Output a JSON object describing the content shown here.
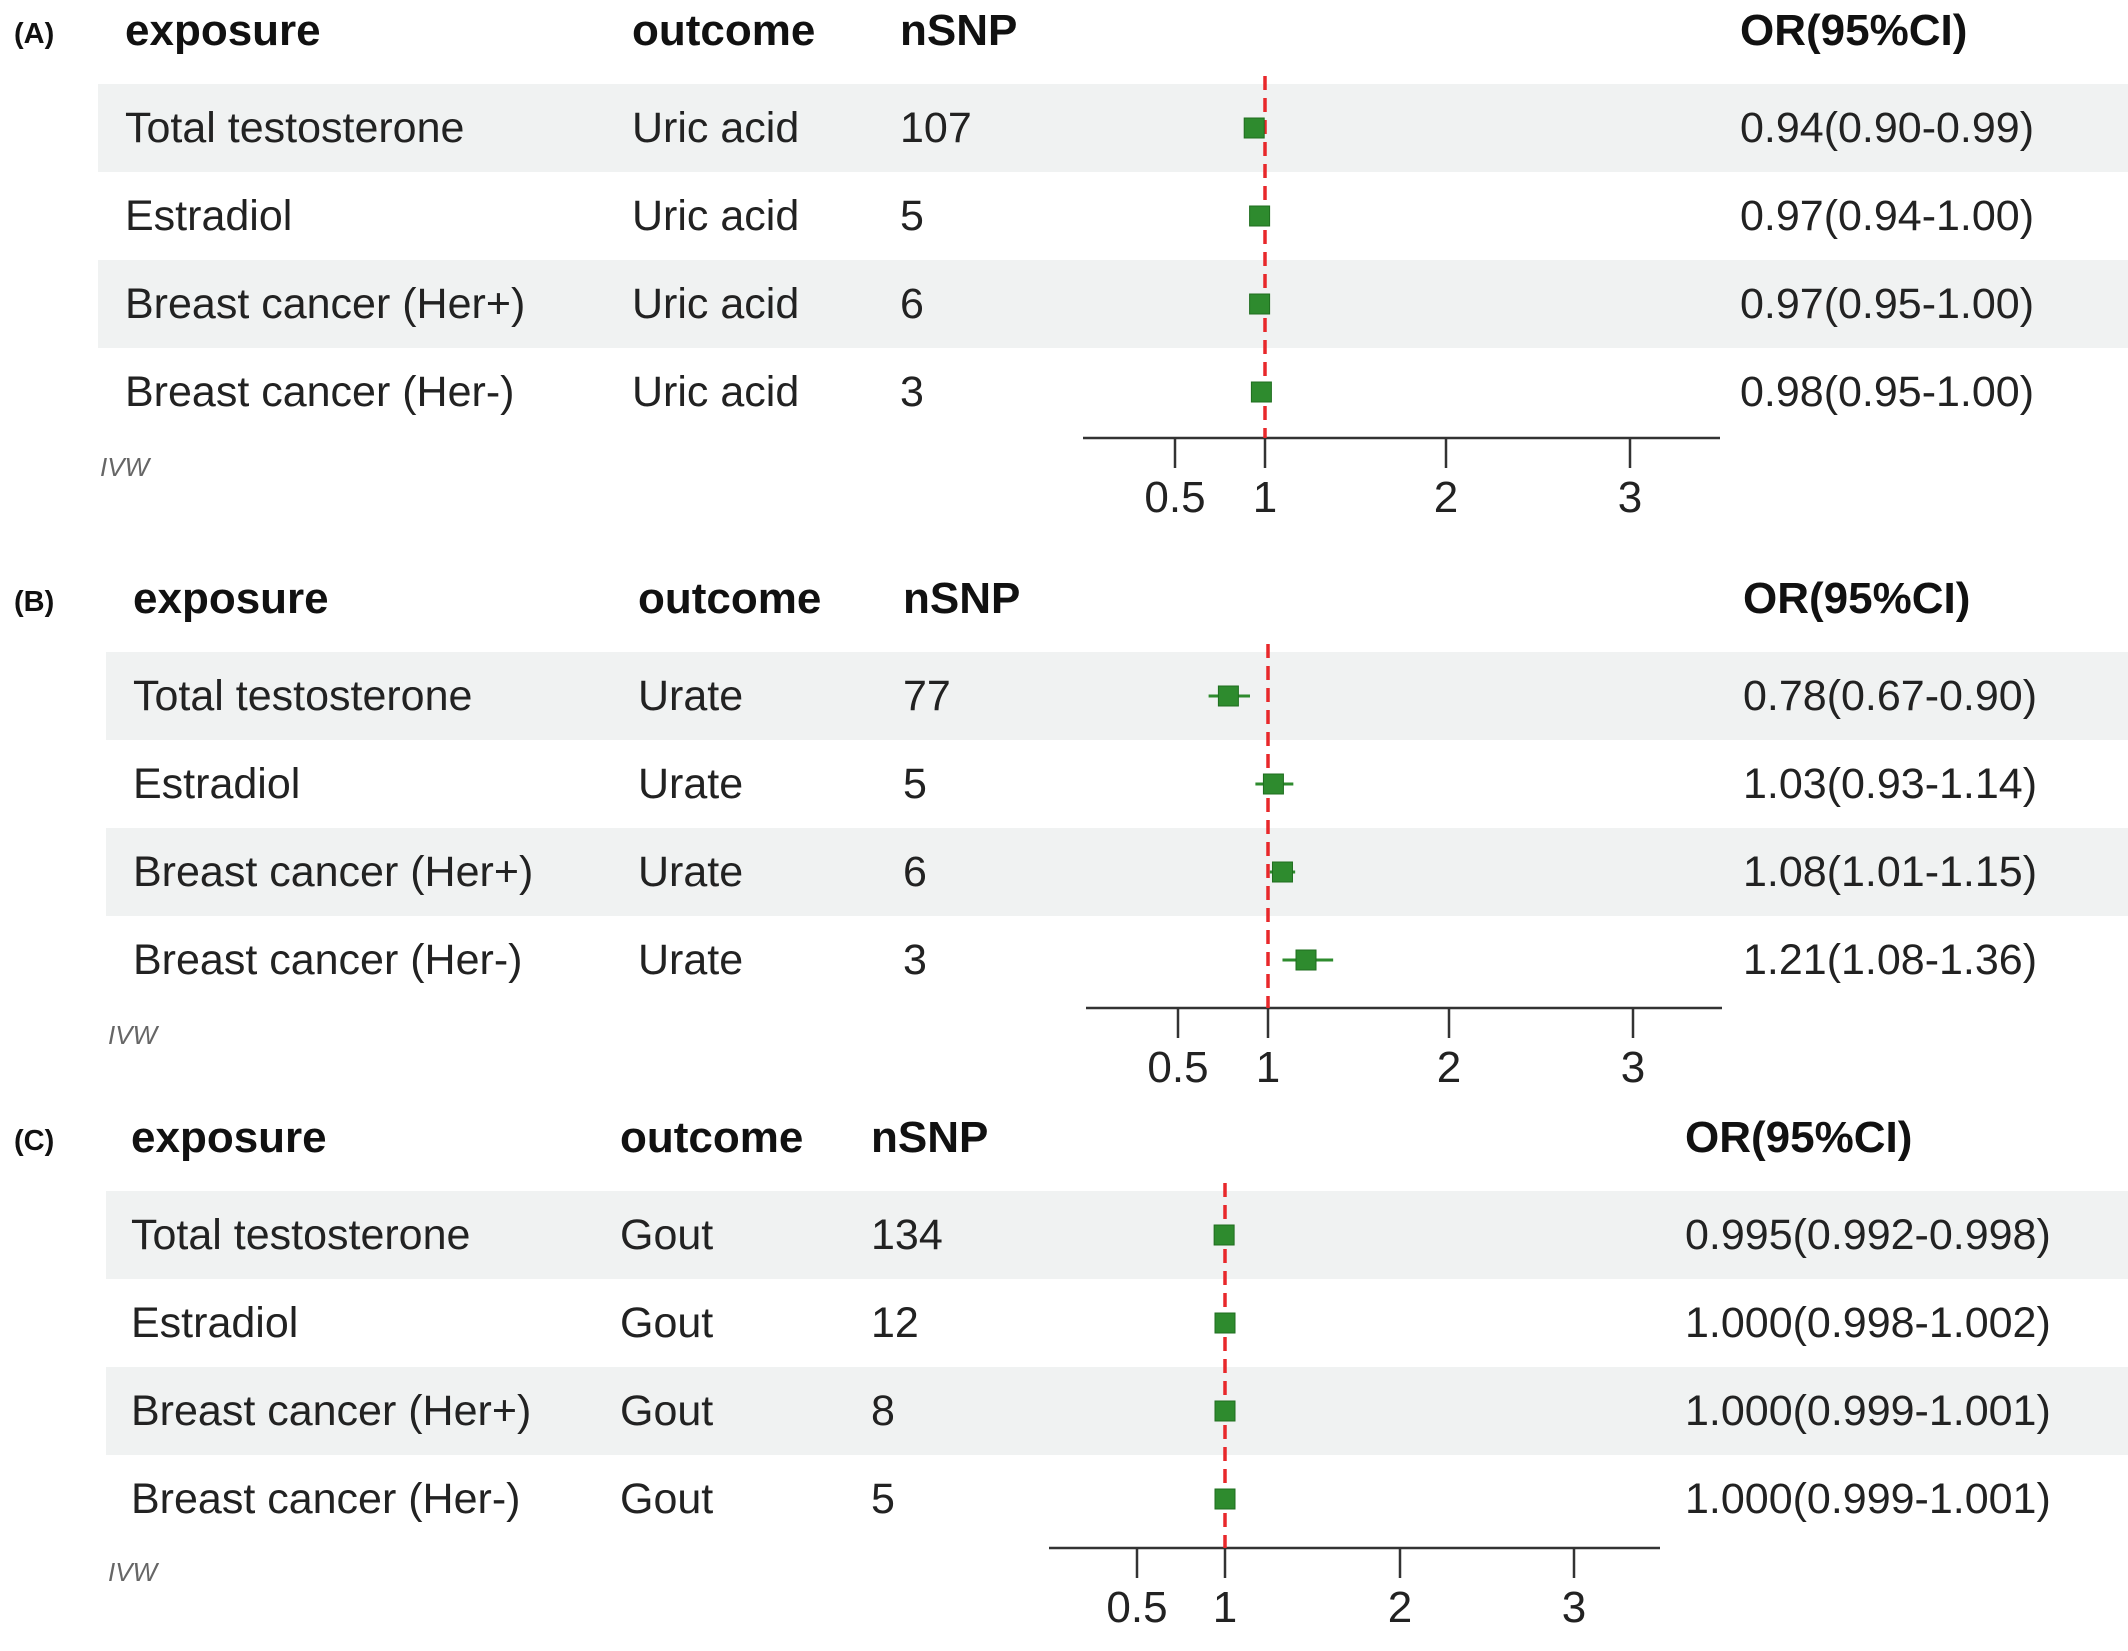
{
  "chart_data": [
    {
      "type": "forest",
      "panel_label": "(A)",
      "headers": {
        "exposure": "exposure",
        "outcome": "outcome",
        "nsnp": "nSNP",
        "or": "OR(95%CI)"
      },
      "method": "IVW",
      "xticks": [
        0.5,
        1,
        2,
        3
      ],
      "xtick_labels": [
        "0.5",
        "1",
        "2",
        "3"
      ],
      "reference_line": 1,
      "rows": [
        {
          "exposure": "Total testosterone",
          "outcome": "Uric acid",
          "nsnp": "107",
          "or": 0.94,
          "lo": 0.9,
          "hi": 0.99,
          "text": "0.94(0.90-0.99)"
        },
        {
          "exposure": "Estradiol",
          "outcome": "Uric acid",
          "nsnp": "5",
          "or": 0.97,
          "lo": 0.94,
          "hi": 1.0,
          "text": "0.97(0.94-1.00)"
        },
        {
          "exposure": "Breast cancer (Her+)",
          "outcome": "Uric acid",
          "nsnp": "6",
          "or": 0.97,
          "lo": 0.95,
          "hi": 1.0,
          "text": "0.97(0.95-1.00)"
        },
        {
          "exposure": "Breast cancer (Her-)",
          "outcome": "Uric acid",
          "nsnp": "3",
          "or": 0.98,
          "lo": 0.95,
          "hi": 1.0,
          "text": "0.98(0.95-1.00)"
        }
      ]
    },
    {
      "type": "forest",
      "panel_label": "(B)",
      "headers": {
        "exposure": "exposure",
        "outcome": "outcome",
        "nsnp": "nSNP",
        "or": "OR(95%CI)"
      },
      "method": "IVW",
      "xticks": [
        0.5,
        1,
        2,
        3
      ],
      "xtick_labels": [
        "0.5",
        "1",
        "2",
        "3"
      ],
      "reference_line": 1,
      "rows": [
        {
          "exposure": "Total testosterone",
          "outcome": "Urate",
          "nsnp": "77",
          "or": 0.78,
          "lo": 0.67,
          "hi": 0.9,
          "text": "0.78(0.67-0.90)"
        },
        {
          "exposure": "Estradiol",
          "outcome": "Urate",
          "nsnp": "5",
          "or": 1.03,
          "lo": 0.93,
          "hi": 1.14,
          "text": "1.03(0.93-1.14)"
        },
        {
          "exposure": "Breast cancer (Her+)",
          "outcome": "Urate",
          "nsnp": "6",
          "or": 1.08,
          "lo": 1.01,
          "hi": 1.15,
          "text": "1.08(1.01-1.15)"
        },
        {
          "exposure": "Breast cancer (Her-)",
          "outcome": "Urate",
          "nsnp": "3",
          "or": 1.21,
          "lo": 1.08,
          "hi": 1.36,
          "text": "1.21(1.08-1.36)"
        }
      ]
    },
    {
      "type": "forest",
      "panel_label": "(C)",
      "headers": {
        "exposure": "exposure",
        "outcome": "outcome",
        "nsnp": "nSNP",
        "or": "OR(95%CI)"
      },
      "method": "IVW",
      "xticks": [
        0.5,
        1,
        2,
        3
      ],
      "xtick_labels": [
        "0.5",
        "1",
        "2",
        "3"
      ],
      "reference_line": 1,
      "rows": [
        {
          "exposure": "Total testosterone",
          "outcome": "Gout",
          "nsnp": "134",
          "or": 0.995,
          "lo": 0.992,
          "hi": 0.998,
          "text": "0.995(0.992-0.998)"
        },
        {
          "exposure": "Estradiol",
          "outcome": "Gout",
          "nsnp": "12",
          "or": 1.0,
          "lo": 0.998,
          "hi": 1.002,
          "text": "1.000(0.998-1.002)"
        },
        {
          "exposure": "Breast cancer (Her+)",
          "outcome": "Gout",
          "nsnp": "8",
          "or": 1.0,
          "lo": 0.999,
          "hi": 1.001,
          "text": "1.000(0.999-1.001)"
        },
        {
          "exposure": "Breast cancer (Her-)",
          "outcome": "Gout",
          "nsnp": "5",
          "or": 1.0,
          "lo": 0.999,
          "hi": 1.001,
          "text": "1.000(0.999-1.001)"
        }
      ]
    }
  ],
  "colors": {
    "marker": "#2e8b2e",
    "reference_line": "#e8282b",
    "shade": "#f0f2f2",
    "text": "#222222"
  }
}
